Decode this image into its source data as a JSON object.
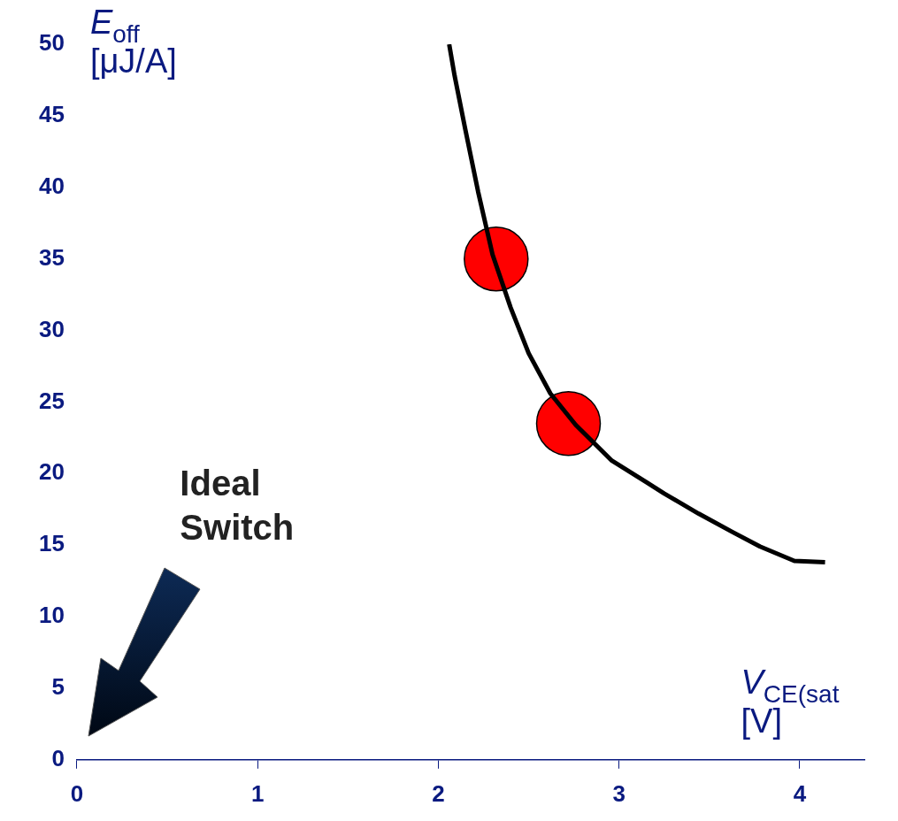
{
  "chart_data": {
    "type": "line",
    "xlabel": "V$_{CE(sat}$ [V]",
    "ylabel": "E$_{off}$ [μJ/A]",
    "annotations": [
      "Ideal Switch"
    ],
    "xlim": [
      0,
      4.36
    ],
    "ylim": [
      0,
      50
    ],
    "xticks": [
      0,
      1,
      2,
      3,
      4
    ],
    "yticks": [
      0,
      5,
      10,
      15,
      20,
      25,
      30,
      35,
      40,
      45,
      50
    ],
    "grid": false,
    "legend": false,
    "series": [
      {
        "color": "#000000",
        "marker": "none",
        "x": [
          2.06,
          2.09,
          2.15,
          2.22,
          2.3,
          2.4,
          2.5,
          2.62,
          2.76,
          2.96,
          3.15,
          3.25,
          3.44,
          3.63,
          3.78,
          3.97,
          4.14
        ],
        "values": [
          50,
          47.8,
          44,
          39.7,
          35.3,
          31.6,
          28.4,
          25.6,
          23.4,
          20.9,
          19.4,
          18.6,
          17.2,
          15.9,
          14.9,
          13.9,
          13.8
        ]
      },
      {
        "type": "scatter",
        "color": "#ff0000",
        "marker": "circle",
        "x": [
          2.32,
          2.72
        ],
        "values": [
          35,
          23.5
        ]
      }
    ]
  }
}
